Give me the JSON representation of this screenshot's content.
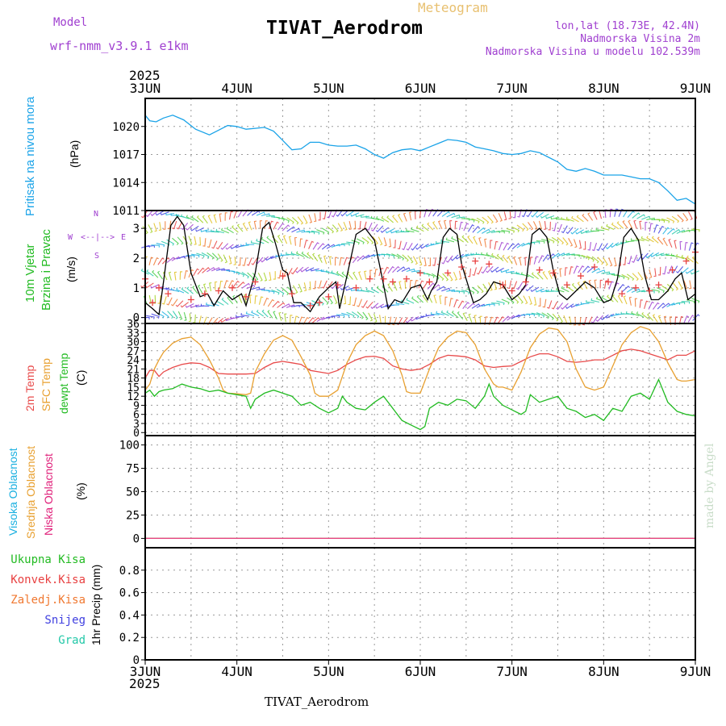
{
  "header": {
    "model_label": "Model",
    "model_name": "wrf-nmm_v3.9.1 e1km",
    "chart_kind": "Meteogram",
    "station": "TIVAT_Aerodrom",
    "lonlat": "lon,lat (18.73E, 42.4N)",
    "elev": "Nadmorska Visina 2m",
    "elev_model": "Nadmorska Visina u modelu 102.539m",
    "year": "2025",
    "footer_station": "TIVAT_Aerodrom",
    "credit": "made by Angel"
  },
  "colors": {
    "pressure": "#1aa3e8",
    "wind_speed": "#000000",
    "gust": "#e84040",
    "temp2m": "#e84a4a",
    "sfc": "#e8a030",
    "dew": "#22bb22",
    "title_purple": "#a040d0",
    "title_gold": "#e8c070"
  },
  "chart_data": [
    {
      "type": "line",
      "panel": "pressure",
      "title": "Pritisak na nivou mora",
      "ylabel": "(hPa)",
      "x_ticks": [
        "3JUN",
        "4JUN",
        "5JUN",
        "6JUN",
        "7JUN",
        "8JUN",
        "9JUN"
      ],
      "xlim": [
        0,
        6
      ],
      "ylim": [
        1011,
        1023
      ],
      "y_ticks": [
        1011,
        1014,
        1017,
        1020
      ],
      "grid": true,
      "series": [
        {
          "x": [
            0,
            0.05,
            0.12,
            0.2,
            0.3,
            0.42,
            0.55,
            0.7,
            0.8,
            0.9,
            1.0,
            1.1,
            1.2,
            1.3,
            1.4,
            1.5,
            1.6,
            1.7,
            1.8,
            1.9,
            2.0,
            2.1,
            2.2,
            2.3,
            2.4,
            2.5,
            2.6,
            2.7,
            2.8,
            2.9,
            3.0,
            3.1,
            3.2,
            3.3,
            3.4,
            3.5,
            3.6,
            3.7,
            3.8,
            3.9,
            4.0,
            4.1,
            4.2,
            4.3,
            4.4,
            4.5,
            4.6,
            4.7,
            4.8,
            4.9,
            5.0,
            5.1,
            5.2,
            5.3,
            5.4,
            5.5,
            5.6,
            5.7,
            5.8,
            5.9,
            6.0
          ],
          "y": [
            1021.2,
            1020.6,
            1020.5,
            1020.9,
            1021.2,
            1020.7,
            1019.7,
            1019.1,
            1019.6,
            1020.1,
            1020.0,
            1019.7,
            1019.8,
            1019.9,
            1019.5,
            1018.5,
            1017.5,
            1017.6,
            1018.3,
            1018.3,
            1018.0,
            1017.9,
            1017.9,
            1018.0,
            1017.6,
            1017.0,
            1016.6,
            1017.2,
            1017.5,
            1017.6,
            1017.4,
            1017.8,
            1018.2,
            1018.6,
            1018.5,
            1018.3,
            1017.8,
            1017.6,
            1017.4,
            1017.1,
            1017.0,
            1017.1,
            1017.4,
            1017.2,
            1016.7,
            1016.2,
            1015.4,
            1015.2,
            1015.5,
            1015.2,
            1014.8,
            1014.8,
            1014.8,
            1014.6,
            1014.4,
            1014.4,
            1014.0,
            1013.1,
            1012.1,
            1012.3,
            1011.7
          ]
        }
      ]
    },
    {
      "type": "line",
      "panel": "wind",
      "title": "10m Vjetar",
      "subtitle": "Brzina i Pravac",
      "ylabel": "(m/s)",
      "compass": [
        "N",
        "W",
        "<--|-->",
        "E",
        "S"
      ],
      "xlim": [
        0,
        6
      ],
      "ylim": [
        -0.2,
        3.6
      ],
      "y_ticks": [
        0,
        1,
        2,
        3
      ],
      "grid": true,
      "series": [
        {
          "name": "wind speed",
          "x": [
            0,
            0.08,
            0.15,
            0.2,
            0.28,
            0.35,
            0.42,
            0.5,
            0.6,
            0.68,
            0.75,
            0.85,
            0.95,
            1.05,
            1.1,
            1.2,
            1.28,
            1.35,
            1.42,
            1.5,
            1.55,
            1.62,
            1.7,
            1.8,
            1.9,
            2.0,
            2.08,
            2.12,
            2.2,
            2.3,
            2.4,
            2.5,
            2.58,
            2.65,
            2.72,
            2.8,
            2.9,
            3.0,
            3.08,
            3.12,
            3.18,
            3.25,
            3.32,
            3.4,
            3.45,
            3.5,
            3.58,
            3.65,
            3.72,
            3.8,
            3.9,
            4.0,
            4.08,
            4.15,
            4.22,
            4.3,
            4.38,
            4.45,
            4.52,
            4.6,
            4.7,
            4.8,
            4.9,
            5.0,
            5.08,
            5.15,
            5.22,
            5.3,
            5.38,
            5.45,
            5.52,
            5.6,
            5.7,
            5.78,
            5.85,
            5.92,
            6.0
          ],
          "y": [
            0.5,
            0.3,
            0.1,
            1.2,
            3.1,
            3.4,
            3.1,
            1.5,
            0.7,
            0.8,
            0.4,
            0.9,
            0.6,
            0.8,
            0.4,
            1.5,
            3.0,
            3.2,
            2.5,
            1.6,
            1.5,
            0.5,
            0.5,
            0.2,
            0.7,
            1.0,
            1.2,
            0.3,
            1.4,
            2.8,
            3.0,
            2.6,
            1.4,
            0.3,
            0.6,
            0.5,
            1.0,
            1.1,
            0.6,
            0.9,
            1.2,
            2.7,
            3.0,
            2.8,
            1.8,
            1.3,
            0.5,
            0.6,
            0.8,
            1.2,
            1.1,
            0.6,
            0.8,
            1.1,
            2.8,
            3.0,
            2.7,
            1.6,
            0.8,
            0.6,
            0.9,
            1.2,
            1.0,
            0.5,
            0.6,
            1.3,
            2.7,
            3.0,
            2.6,
            1.4,
            0.6,
            0.6,
            0.9,
            1.3,
            1.5,
            0.6,
            0.8
          ]
        },
        {
          "name": "gust",
          "x": [
            0,
            0.08,
            0.15,
            0.25,
            0.5,
            0.65,
            0.8,
            0.95,
            1.1,
            1.2,
            1.5,
            1.6,
            1.8,
            1.9,
            2.0,
            2.1,
            2.3,
            2.45,
            2.6,
            2.7,
            2.85,
            3.0,
            3.1,
            3.3,
            3.45,
            3.6,
            3.75,
            3.9,
            4.0,
            4.15,
            4.3,
            4.45,
            4.6,
            4.75,
            4.9,
            5.05,
            5.2,
            5.35,
            5.5,
            5.6,
            5.75,
            5.9,
            6.0
          ],
          "y": [
            1.3,
            0.5,
            1.0,
            0.8,
            0.6,
            0.8,
            0.9,
            1.0,
            0.7,
            1.2,
            1.4,
            0.8,
            0.4,
            0.5,
            0.7,
            1.1,
            1.0,
            1.3,
            1.3,
            1.2,
            1.3,
            1.5,
            1.2,
            1.5,
            1.7,
            1.9,
            1.8,
            1.1,
            0.9,
            1.2,
            1.6,
            1.5,
            1.1,
            1.4,
            1.7,
            1.2,
            0.8,
            1.0,
            0.9,
            1.1,
            1.6,
            1.9,
            2.2
          ]
        }
      ]
    },
    {
      "type": "line",
      "panel": "temperature",
      "title": "2m Temp",
      "series_titles": [
        "SFC Temp",
        "dewpt Temp"
      ],
      "ylabel": "(C)",
      "xlim": [
        0,
        6
      ],
      "ylim": [
        -1,
        36
      ],
      "y_ticks": [
        0,
        3,
        6,
        9,
        12,
        15,
        18,
        21,
        24,
        27,
        30,
        33,
        36
      ],
      "grid": true,
      "series": [
        {
          "name": "2m Temp",
          "x": [
            0,
            0.05,
            0.1,
            0.15,
            0.2,
            0.3,
            0.4,
            0.5,
            0.6,
            0.7,
            0.8,
            0.9,
            1.0,
            1.1,
            1.2,
            1.3,
            1.4,
            1.5,
            1.6,
            1.7,
            1.8,
            1.9,
            2.0,
            2.1,
            2.2,
            2.3,
            2.4,
            2.5,
            2.6,
            2.7,
            2.8,
            2.9,
            3.0,
            3.1,
            3.2,
            3.3,
            3.4,
            3.5,
            3.6,
            3.7,
            3.8,
            3.9,
            4.0,
            4.1,
            4.2,
            4.3,
            4.4,
            4.5,
            4.6,
            4.7,
            4.8,
            4.9,
            5.0,
            5.1,
            5.2,
            5.3,
            5.4,
            5.5,
            5.6,
            5.7,
            5.8,
            5.9,
            6.0
          ],
          "y": [
            18.0,
            20.5,
            20.5,
            18.5,
            20.0,
            21.5,
            22.5,
            23.0,
            22.8,
            21.5,
            19.5,
            19.3,
            19.3,
            19.3,
            19.5,
            21.5,
            23.0,
            23.5,
            23.0,
            22.5,
            20.5,
            20.0,
            19.5,
            20.5,
            22.5,
            24.0,
            25.0,
            25.2,
            24.5,
            22.0,
            21.0,
            20.5,
            21.0,
            22.5,
            24.5,
            25.5,
            25.3,
            25.0,
            24.0,
            22.0,
            21.5,
            21.8,
            22.0,
            23.5,
            25.0,
            26.0,
            26.0,
            25.0,
            23.5,
            23.2,
            23.5,
            24.0,
            24.0,
            25.5,
            27.0,
            27.5,
            27.0,
            26.0,
            25.0,
            24.0,
            25.5,
            25.5,
            27.0
          ]
        },
        {
          "name": "SFC Temp",
          "x": [
            0,
            0.05,
            0.1,
            0.15,
            0.2,
            0.3,
            0.4,
            0.5,
            0.6,
            0.7,
            0.8,
            0.85,
            0.9,
            1.0,
            1.1,
            1.15,
            1.2,
            1.3,
            1.4,
            1.5,
            1.6,
            1.7,
            1.8,
            1.85,
            1.9,
            2.0,
            2.1,
            2.2,
            2.3,
            2.4,
            2.5,
            2.6,
            2.7,
            2.8,
            2.85,
            2.9,
            3.0,
            3.1,
            3.2,
            3.3,
            3.4,
            3.5,
            3.6,
            3.7,
            3.8,
            3.85,
            3.9,
            4.0,
            4.1,
            4.2,
            4.3,
            4.4,
            4.5,
            4.6,
            4.7,
            4.8,
            4.85,
            4.9,
            5.0,
            5.1,
            5.2,
            5.3,
            5.4,
            5.5,
            5.6,
            5.7,
            5.8,
            5.85,
            5.9,
            6.0
          ],
          "y": [
            14.0,
            16.0,
            21.0,
            24.0,
            26.5,
            29.5,
            31.0,
            31.5,
            29.0,
            24.0,
            18.0,
            14.0,
            13.0,
            12.8,
            12.5,
            13.0,
            20.0,
            26.0,
            30.5,
            32.0,
            30.5,
            25.0,
            19.0,
            13.0,
            12.0,
            12.0,
            14.0,
            23.0,
            29.0,
            32.0,
            33.5,
            32.0,
            27.0,
            19.0,
            13.5,
            13.0,
            13.0,
            21.0,
            28.0,
            31.5,
            33.5,
            33.0,
            29.0,
            21.0,
            16.0,
            15.0,
            15.0,
            14.0,
            20.0,
            28.0,
            32.5,
            34.5,
            34.0,
            30.0,
            21.0,
            15.0,
            14.5,
            14.0,
            15.0,
            22.0,
            29.0,
            33.0,
            35.0,
            34.0,
            30.0,
            23.0,
            17.5,
            17.0,
            17.0,
            17.5
          ]
        },
        {
          "name": "dewpt Temp",
          "x": [
            0,
            0.05,
            0.1,
            0.15,
            0.2,
            0.3,
            0.4,
            0.5,
            0.6,
            0.7,
            0.8,
            0.9,
            1.0,
            1.1,
            1.15,
            1.2,
            1.3,
            1.4,
            1.5,
            1.6,
            1.7,
            1.8,
            1.9,
            2.0,
            2.1,
            2.15,
            2.2,
            2.3,
            2.4,
            2.5,
            2.6,
            2.7,
            2.8,
            2.9,
            3.0,
            3.05,
            3.1,
            3.2,
            3.3,
            3.4,
            3.5,
            3.6,
            3.7,
            3.75,
            3.8,
            3.9,
            4.0,
            4.1,
            4.15,
            4.2,
            4.3,
            4.4,
            4.5,
            4.6,
            4.7,
            4.8,
            4.9,
            5.0,
            5.1,
            5.2,
            5.3,
            5.4,
            5.5,
            5.6,
            5.7,
            5.8,
            5.9,
            6.0
          ],
          "y": [
            13.0,
            14.0,
            12.0,
            13.5,
            14.0,
            14.5,
            16.0,
            15.0,
            14.5,
            13.5,
            14.0,
            13.0,
            12.5,
            12.0,
            8.0,
            11.0,
            13.0,
            14.0,
            13.0,
            12.0,
            9.0,
            10.0,
            8.0,
            6.5,
            8.0,
            12.0,
            10.0,
            8.0,
            7.5,
            10.0,
            12.0,
            8.0,
            4.0,
            2.5,
            1.0,
            2.0,
            8.0,
            10.0,
            9.0,
            11.0,
            10.5,
            8.0,
            12.0,
            16.0,
            12.0,
            9.0,
            7.5,
            6.0,
            7.0,
            12.5,
            10.0,
            11.0,
            12.0,
            8.0,
            7.0,
            5.0,
            6.0,
            4.0,
            8.0,
            7.0,
            12.0,
            13.0,
            11.0,
            17.5,
            10.0,
            7.0,
            6.0,
            5.5
          ]
        }
      ]
    },
    {
      "type": "line",
      "panel": "clouds",
      "series_titles": [
        "Visoka Oblacnost",
        "Srednja Oblacnost",
        "Niska Oblacnost"
      ],
      "ylabel": "(%)",
      "xlim": [
        0,
        6
      ],
      "ylim": [
        -10,
        110
      ],
      "y_ticks": [
        0,
        25,
        50,
        75,
        100
      ],
      "grid": true,
      "series": [
        {
          "name": "Visoka Oblacnost",
          "x": [
            0,
            6
          ],
          "y": [
            0,
            0
          ]
        },
        {
          "name": "Srednja Oblacnost",
          "x": [
            0,
            6
          ],
          "y": [
            0,
            0
          ]
        },
        {
          "name": "Niska Oblacnost",
          "x": [
            0,
            6
          ],
          "y": [
            0,
            0
          ]
        }
      ]
    },
    {
      "type": "line",
      "panel": "precip",
      "series_titles": [
        "Ukupna Kisa",
        "Konvek.Kisa",
        "Zaledj.Kisa",
        "Snijeg",
        "Grad"
      ],
      "ylabel": "1hr Precip (mm)",
      "x_ticks": [
        "3JUN",
        "4JUN",
        "5JUN",
        "6JUN",
        "7JUN",
        "8JUN",
        "9JUN"
      ],
      "xlim": [
        0,
        6
      ],
      "ylim": [
        0,
        1.0
      ],
      "y_ticks": [
        0,
        0.2,
        0.4,
        0.6,
        0.8
      ],
      "grid": true,
      "series": [
        {
          "name": "Ukupna Kisa",
          "x": [
            0,
            6
          ],
          "y": [
            0,
            0
          ]
        }
      ]
    }
  ]
}
